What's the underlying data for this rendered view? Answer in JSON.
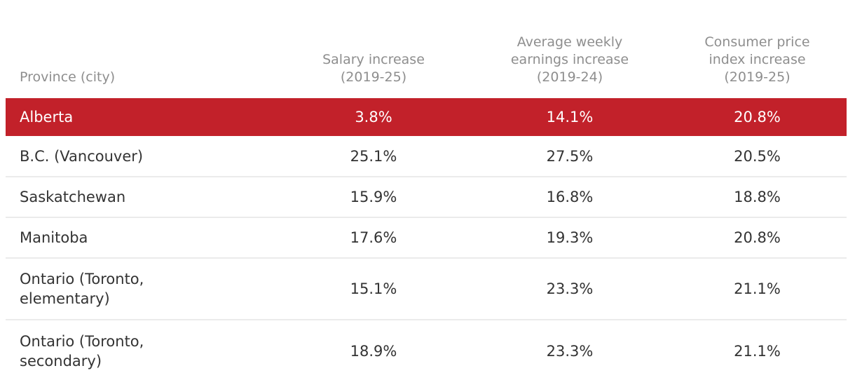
{
  "colors": {
    "highlight_row_bg": "#c2212a",
    "highlight_row_text": "#ffffff",
    "header_text": "#8e8e8e",
    "body_text": "#333333",
    "divider": "#ebebeb",
    "page_bg": "#ffffff"
  },
  "table": {
    "header": {
      "columns": [
        {
          "id": "province",
          "lines": [
            "Province (city)"
          ]
        },
        {
          "id": "salary_increase",
          "lines": [
            "Salary increase",
            "(2019-25)"
          ]
        },
        {
          "id": "weekly_earnings_increase",
          "lines": [
            "Average weekly",
            "earnings increase",
            "(2019-24)"
          ]
        },
        {
          "id": "cpi_increase",
          "lines": [
            "Consumer price",
            "index increase",
            "(2019-25)"
          ]
        }
      ]
    },
    "rows": [
      {
        "province_lines": [
          "Alberta"
        ],
        "values": [
          "3.8%",
          "14.1%",
          "20.8%"
        ],
        "highlighted": true
      },
      {
        "province_lines": [
          "B.C. (Vancouver)"
        ],
        "values": [
          "25.1%",
          "27.5%",
          "20.5%"
        ],
        "highlighted": false
      },
      {
        "province_lines": [
          "Saskatchewan"
        ],
        "values": [
          "15.9%",
          "16.8%",
          "18.8%"
        ],
        "highlighted": false
      },
      {
        "province_lines": [
          "Manitoba"
        ],
        "values": [
          "17.6%",
          "19.3%",
          "20.8%"
        ],
        "highlighted": false
      },
      {
        "province_lines": [
          "Ontario (Toronto,",
          "elementary)"
        ],
        "values": [
          "15.1%",
          "23.3%",
          "21.1%"
        ],
        "highlighted": false
      },
      {
        "province_lines": [
          "Ontario (Toronto,",
          "secondary)"
        ],
        "values": [
          "18.9%",
          "23.3%",
          "21.1%"
        ],
        "highlighted": false
      }
    ]
  },
  "chart_data": {
    "type": "table",
    "columns": [
      "Province (city)",
      "Salary increase (2019-25)",
      "Average weekly earnings increase (2019-24)",
      "Consumer price index increase (2019-25)"
    ],
    "rows": [
      [
        "Alberta",
        "3.8%",
        "14.1%",
        "20.8%"
      ],
      [
        "B.C. (Vancouver)",
        "25.1%",
        "27.5%",
        "20.5%"
      ],
      [
        "Saskatchewan",
        "15.9%",
        "16.8%",
        "18.8%"
      ],
      [
        "Manitoba",
        "17.6%",
        "19.3%",
        "20.8%"
      ],
      [
        "Ontario (Toronto, elementary)",
        "15.1%",
        "23.3%",
        "21.1%"
      ],
      [
        "Ontario (Toronto, secondary)",
        "18.9%",
        "23.3%",
        "21.1%"
      ]
    ],
    "highlighted_row": "Alberta"
  }
}
